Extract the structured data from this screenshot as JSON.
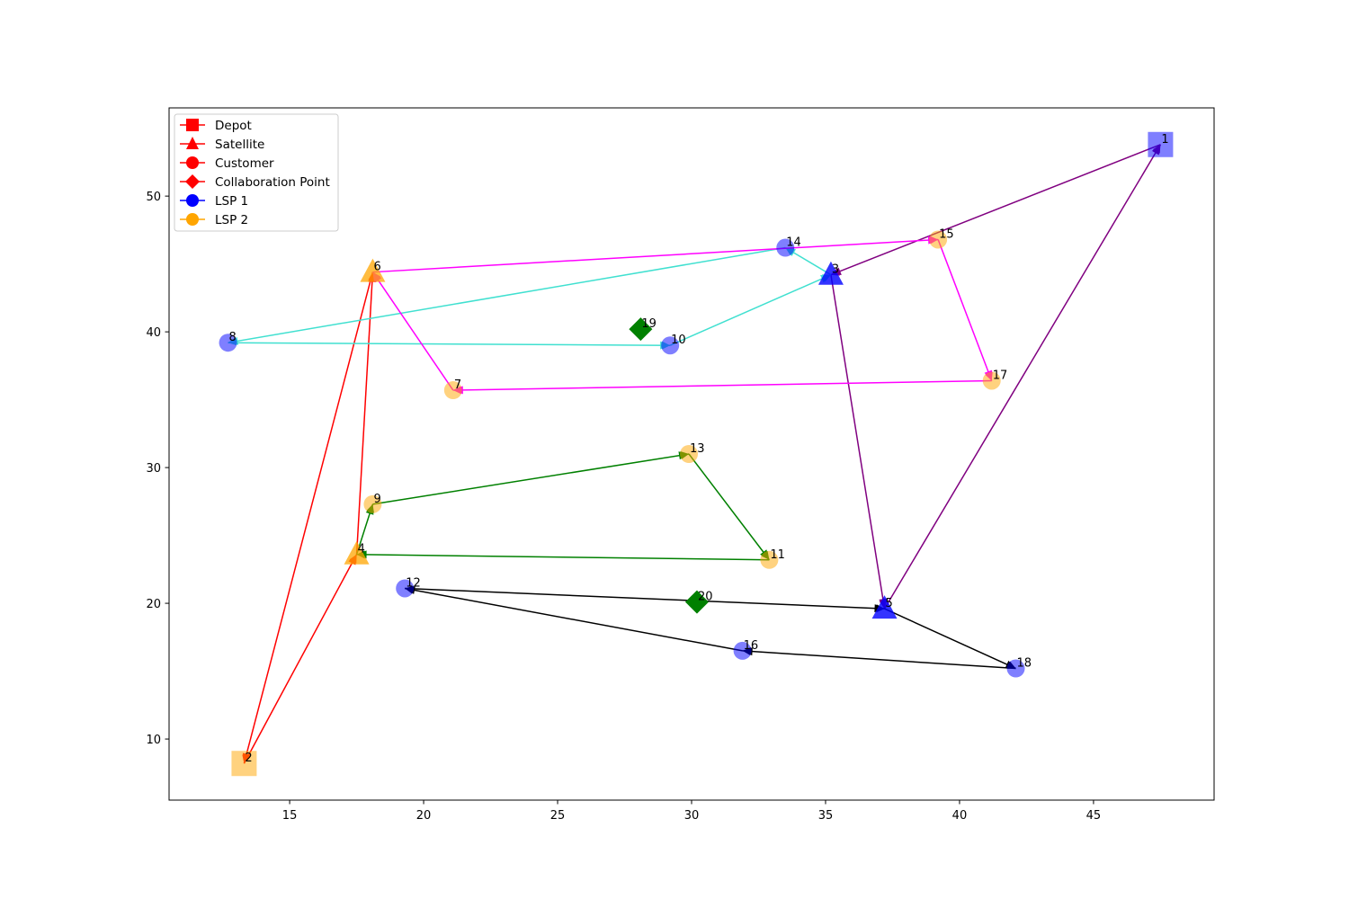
{
  "chart_data": {
    "type": "scatter",
    "title": "",
    "xlabel": "",
    "ylabel": "",
    "xlim": [
      10.5,
      49.5
    ],
    "ylim": [
      5.5,
      56.5
    ],
    "x_ticks": [
      15,
      20,
      25,
      30,
      35,
      40,
      45
    ],
    "y_ticks": [
      10,
      20,
      30,
      40,
      50
    ],
    "grid": false,
    "legend_position": "top-left",
    "legend": [
      {
        "label": "Depot",
        "marker": "square",
        "color": "#ff0000"
      },
      {
        "label": "Satellite",
        "marker": "triangle",
        "color": "#ff0000"
      },
      {
        "label": "Customer",
        "marker": "circle",
        "color": "#ff0000"
      },
      {
        "label": "Collaboration Point",
        "marker": "diamond",
        "color": "#ff0000"
      },
      {
        "label": "LSP 1",
        "marker": "circle",
        "color": "#0000ff"
      },
      {
        "label": "LSP 2",
        "marker": "circle",
        "color": "#ffa500"
      }
    ],
    "nodes": [
      {
        "id": "1",
        "x": 47.5,
        "y": 53.8,
        "kind": "depot",
        "lsp": "LSP 1",
        "color": "#0000ff"
      },
      {
        "id": "2",
        "x": 13.3,
        "y": 8.2,
        "kind": "depot",
        "lsp": "LSP 2",
        "color": "#ffa500"
      },
      {
        "id": "3",
        "x": 35.2,
        "y": 44.2,
        "kind": "satellite",
        "lsp": "LSP 1",
        "color": "#0000ff"
      },
      {
        "id": "4",
        "x": 17.5,
        "y": 23.6,
        "kind": "satellite",
        "lsp": "LSP 2",
        "color": "#ffa500"
      },
      {
        "id": "5",
        "x": 37.2,
        "y": 19.6,
        "kind": "satellite",
        "lsp": "LSP 1",
        "color": "#0000ff"
      },
      {
        "id": "6",
        "x": 18.1,
        "y": 44.4,
        "kind": "satellite",
        "lsp": "LSP 2",
        "color": "#ffa500"
      },
      {
        "id": "7",
        "x": 21.1,
        "y": 35.7,
        "kind": "customer",
        "lsp": "LSP 2",
        "color": "#ffa500"
      },
      {
        "id": "8",
        "x": 12.7,
        "y": 39.2,
        "kind": "customer",
        "lsp": "LSP 1",
        "color": "#0000ff"
      },
      {
        "id": "9",
        "x": 18.1,
        "y": 27.3,
        "kind": "customer",
        "lsp": "LSP 2",
        "color": "#ffa500"
      },
      {
        "id": "10",
        "x": 29.2,
        "y": 39.0,
        "kind": "customer",
        "lsp": "LSP 1",
        "color": "#0000ff"
      },
      {
        "id": "11",
        "x": 32.9,
        "y": 23.2,
        "kind": "customer",
        "lsp": "LSP 2",
        "color": "#ffa500"
      },
      {
        "id": "12",
        "x": 19.3,
        "y": 21.1,
        "kind": "customer",
        "lsp": "LSP 1",
        "color": "#0000ff"
      },
      {
        "id": "13",
        "x": 29.9,
        "y": 31.0,
        "kind": "customer",
        "lsp": "LSP 2",
        "color": "#ffa500"
      },
      {
        "id": "14",
        "x": 33.5,
        "y": 46.2,
        "kind": "customer",
        "lsp": "LSP 1",
        "color": "#0000ff"
      },
      {
        "id": "15",
        "x": 39.2,
        "y": 46.8,
        "kind": "customer",
        "lsp": "LSP 2",
        "color": "#ffa500"
      },
      {
        "id": "16",
        "x": 31.9,
        "y": 16.5,
        "kind": "customer",
        "lsp": "LSP 1",
        "color": "#0000ff"
      },
      {
        "id": "17",
        "x": 41.2,
        "y": 36.4,
        "kind": "customer",
        "lsp": "LSP 2",
        "color": "#ffa500"
      },
      {
        "id": "18",
        "x": 42.1,
        "y": 15.2,
        "kind": "customer",
        "lsp": "LSP 1",
        "color": "#0000ff"
      },
      {
        "id": "19",
        "x": 28.1,
        "y": 40.2,
        "kind": "collaboration",
        "lsp": "",
        "color": "#008000"
      },
      {
        "id": "20",
        "x": 30.2,
        "y": 20.1,
        "kind": "collaboration",
        "lsp": "",
        "color": "#008000"
      }
    ],
    "routes": [
      {
        "color": "#800080",
        "points": [
          [
            37.2,
            19.6
          ],
          [
            47.5,
            53.8
          ],
          [
            35.2,
            44.2
          ],
          [
            37.2,
            19.6
          ]
        ]
      },
      {
        "color": "#ff0000",
        "points": [
          [
            17.5,
            23.6
          ],
          [
            18.1,
            44.4
          ],
          [
            13.3,
            8.2
          ],
          [
            17.5,
            23.6
          ]
        ]
      },
      {
        "color": "#40e0d0",
        "points": [
          [
            35.2,
            44.2
          ],
          [
            33.5,
            46.2
          ],
          [
            12.7,
            39.2
          ],
          [
            29.2,
            39.0
          ],
          [
            35.2,
            44.2
          ]
        ]
      },
      {
        "color": "#ff00ff",
        "points": [
          [
            18.1,
            44.4
          ],
          [
            39.2,
            46.8
          ],
          [
            41.2,
            36.4
          ],
          [
            21.1,
            35.7
          ],
          [
            18.1,
            44.4
          ]
        ]
      },
      {
        "color": "#008000",
        "points": [
          [
            17.5,
            23.6
          ],
          [
            18.1,
            27.3
          ],
          [
            29.9,
            31.0
          ],
          [
            32.9,
            23.2
          ],
          [
            17.5,
            23.6
          ]
        ]
      },
      {
        "color": "#000000",
        "points": [
          [
            37.2,
            19.6
          ],
          [
            42.1,
            15.2
          ],
          [
            31.9,
            16.5
          ],
          [
            19.3,
            21.1
          ],
          [
            37.2,
            19.6
          ]
        ]
      }
    ]
  }
}
